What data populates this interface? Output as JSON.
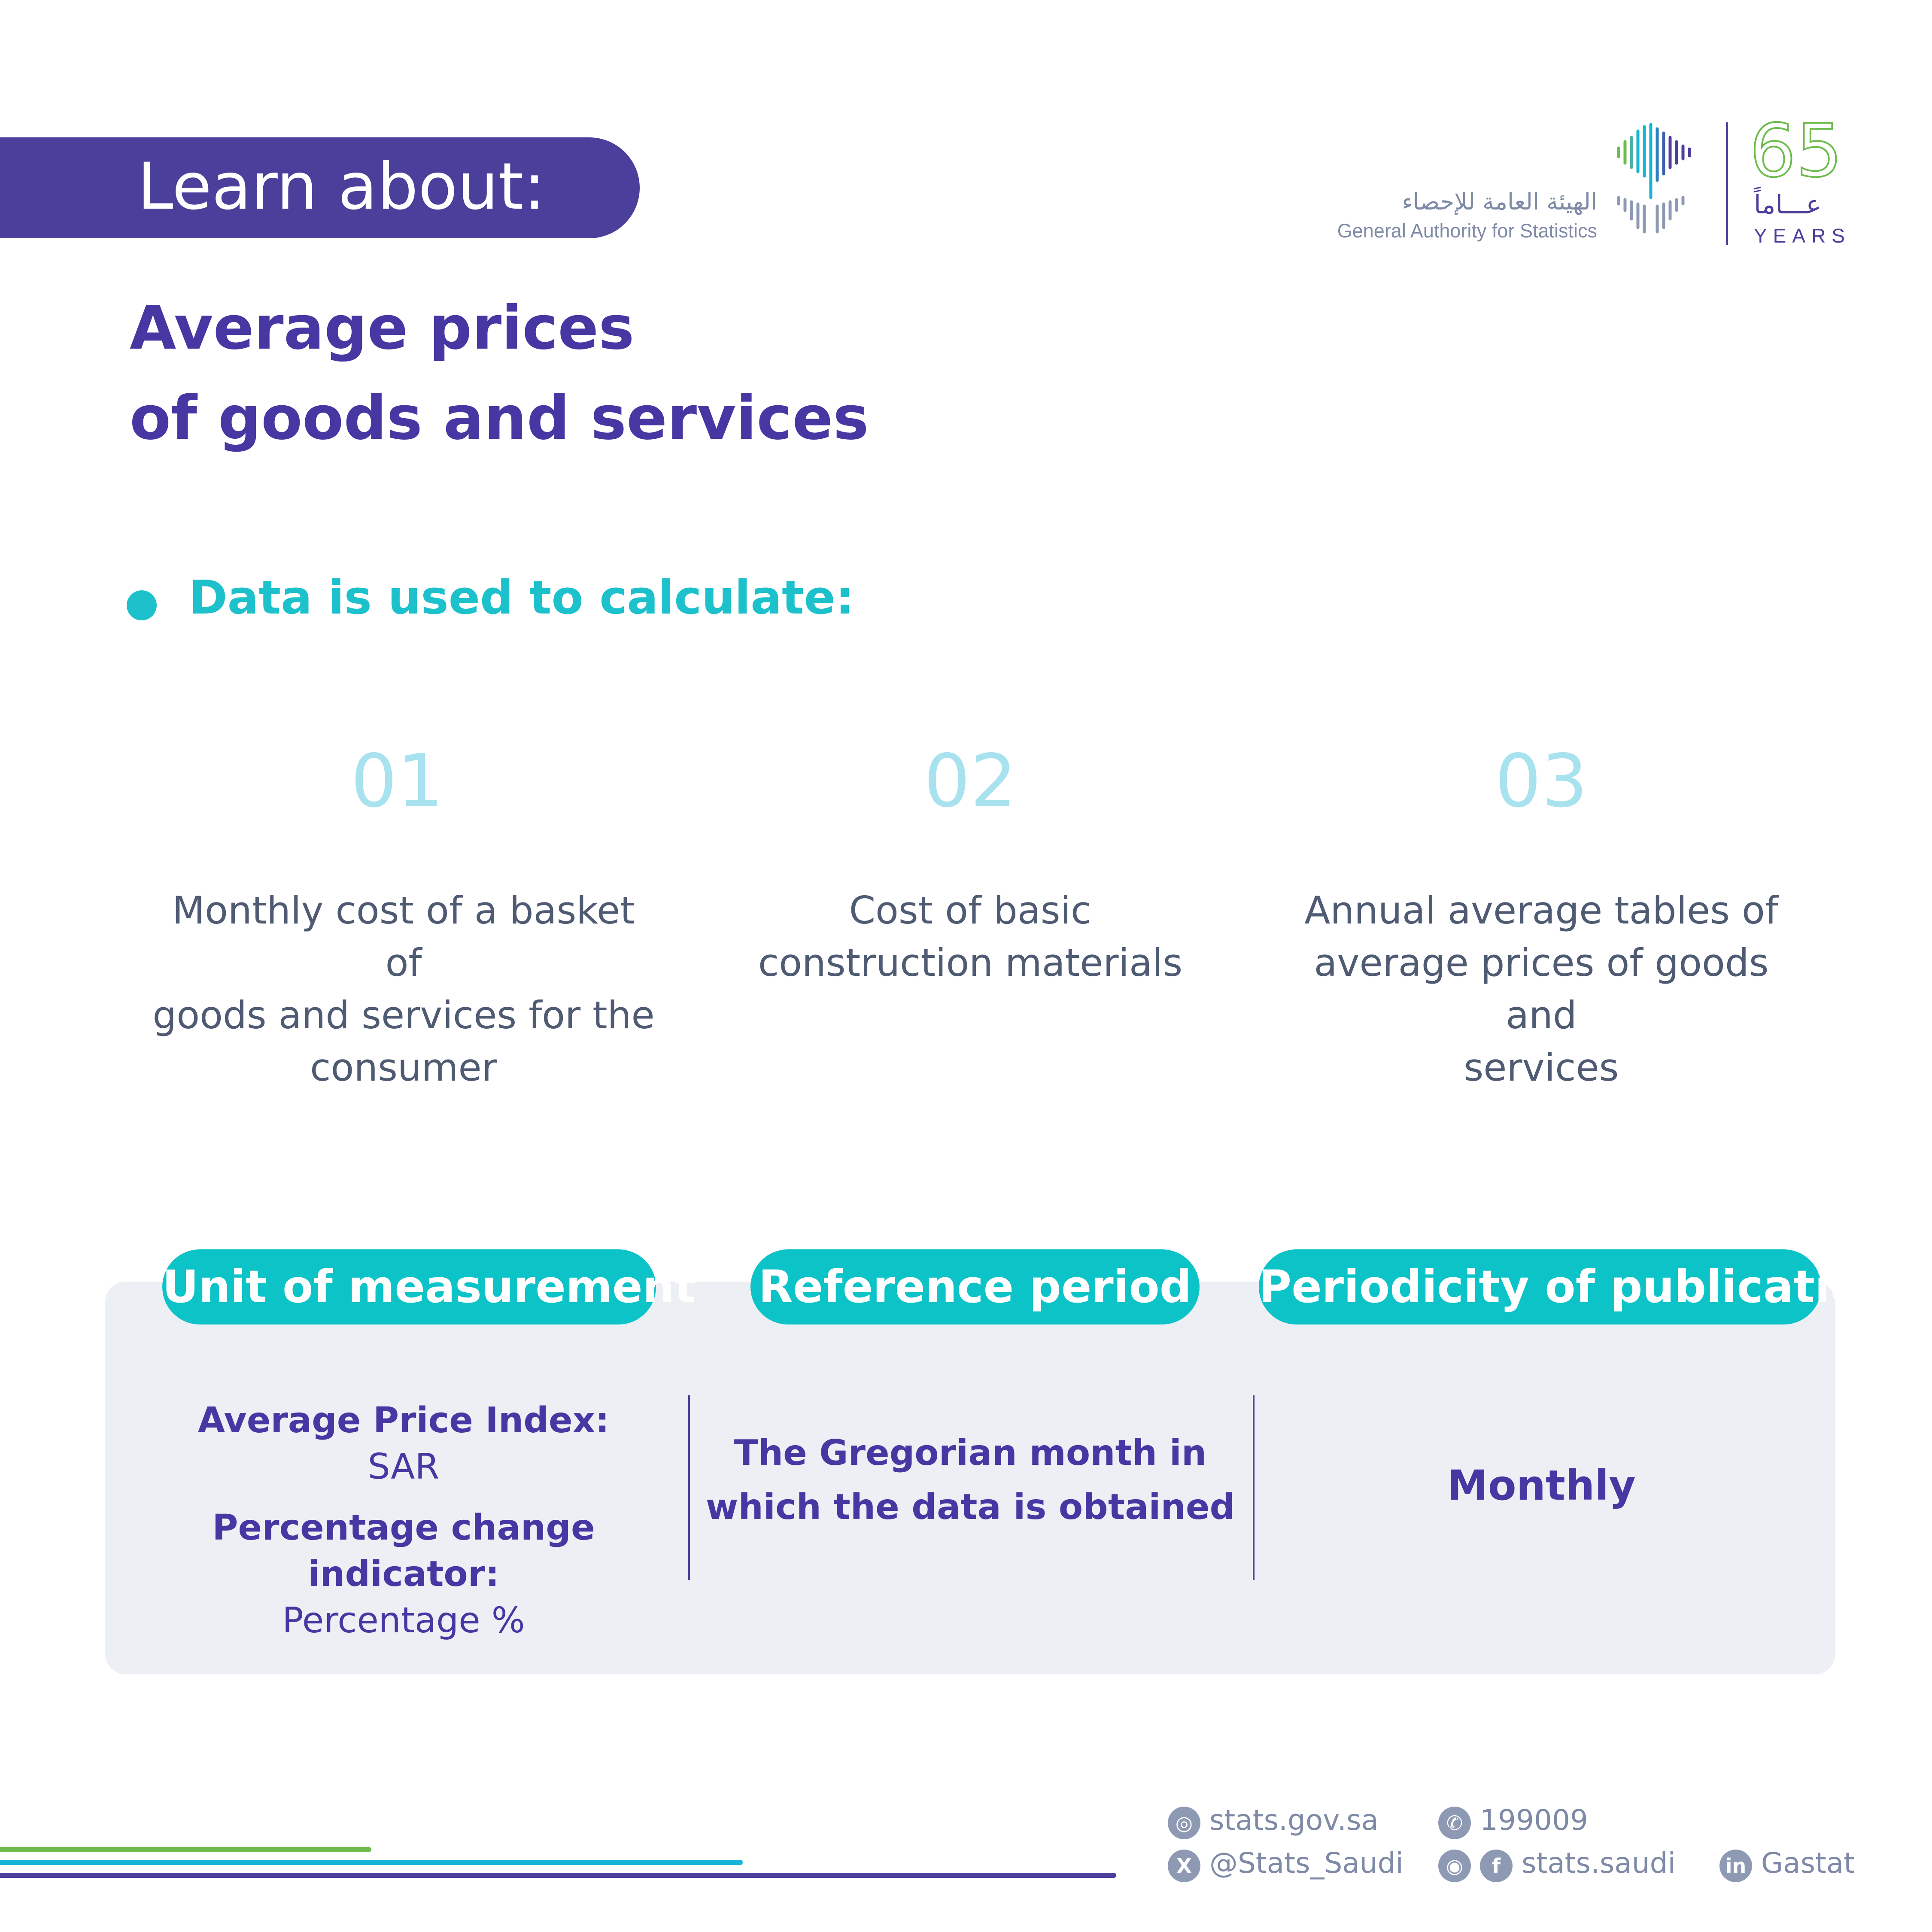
{
  "banner": {
    "label": "Learn about:"
  },
  "logo": {
    "arabic_name": "الهيئة العامة للإحصاء",
    "english_name": "General Authority for Statistics",
    "anniversary_number": "65",
    "anniversary_arabic": "عـــاماً",
    "anniversary_english": "YEARS"
  },
  "title": {
    "line1": "Average prices",
    "line2": "of goods and services"
  },
  "section": {
    "heading": "Data is used to calculate:"
  },
  "items": [
    {
      "number": "01",
      "lines": [
        "Monthly cost of a basket of",
        "goods and services for the",
        "consumer"
      ]
    },
    {
      "number": "02",
      "lines": [
        "Cost of basic",
        "construction materials"
      ]
    },
    {
      "number": "03",
      "lines": [
        "Annual average tables of",
        "average prices of goods and",
        "services"
      ]
    }
  ],
  "info": {
    "unit": {
      "heading": "Unit of measurement",
      "label1": "Average Price Index:",
      "value1": "SAR",
      "label2": "Percentage change indicator:",
      "value2": "Percentage %"
    },
    "reference": {
      "heading": "Reference period",
      "line1": "The Gregorian month in",
      "line2": "which the data is obtained"
    },
    "periodicity": {
      "heading": "Periodicity of publication",
      "value": "Monthly"
    }
  },
  "footer": {
    "website": "stats.gov.sa",
    "phone": "199009",
    "twitter": "@Stats_Saudi",
    "social": "stats.saudi",
    "linkedin": "Gastat",
    "line_colors": [
      "#6dbb4b",
      "#16b4d6",
      "#4a3f9b"
    ]
  },
  "colors": {
    "primary": "#4a3f9b",
    "accent": "#1cc1cc",
    "card_bg": "#eceff4"
  }
}
